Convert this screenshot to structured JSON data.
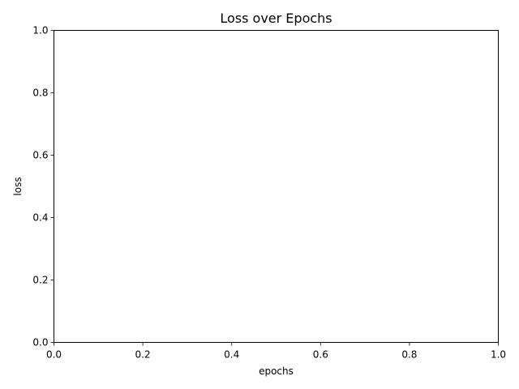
{
  "chart_data": {
    "type": "line",
    "title": "Loss over Epochs",
    "xlabel": "epochs",
    "ylabel": "loss",
    "xlim": [
      0.0,
      1.0
    ],
    "ylim": [
      0.0,
      1.0
    ],
    "x_ticks": [
      0.0,
      0.2,
      0.4,
      0.6,
      0.8,
      1.0
    ],
    "y_ticks": [
      0.0,
      0.2,
      0.4,
      0.6,
      0.8,
      1.0
    ],
    "x_tick_labels": [
      "0.0",
      "0.2",
      "0.4",
      "0.6",
      "0.8",
      "1.0"
    ],
    "y_tick_labels": [
      "0.0",
      "0.2",
      "0.4",
      "0.6",
      "0.8",
      "1.0"
    ],
    "series": [],
    "grid": false,
    "legend": "none"
  }
}
